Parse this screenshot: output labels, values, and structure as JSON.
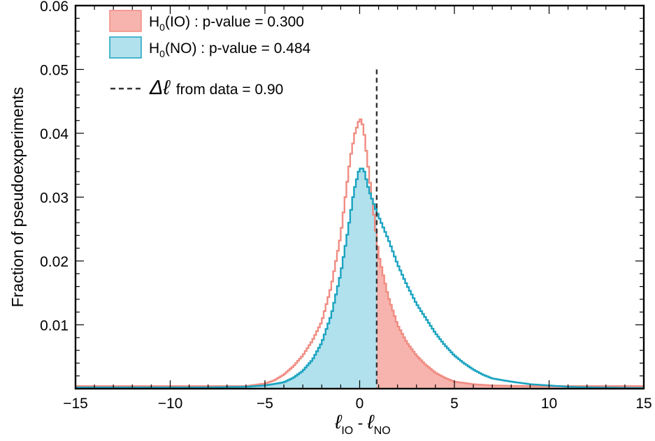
{
  "chart_data": {
    "type": "histogram",
    "ylabel": "Fraction of pseudoexperiments",
    "xlabel": {
      "base1": "ℓ",
      "sub1": "IO",
      "sep": " - ",
      "base2": "ℓ",
      "sub2": "NO"
    },
    "xlim": [
      -15,
      15
    ],
    "ylim": [
      0,
      0.06
    ],
    "xticks": [
      -15,
      -10,
      -5,
      0,
      5,
      10,
      15
    ],
    "xtick_labels": [
      "−15",
      "−10",
      "−5",
      "0",
      "5",
      "10",
      "15"
    ],
    "yticks": [
      0.01,
      0.02,
      0.03,
      0.04,
      0.05,
      0.06
    ],
    "ytick_labels": [
      "0.01",
      "0.02",
      "0.03",
      "0.04",
      "0.05",
      "0.06"
    ],
    "grid": false,
    "legend_position": "top-left",
    "data_line_x": 0.9,
    "series": [
      {
        "key": "io",
        "legend": {
          "pre": "H",
          "sub": "0",
          "post": "(IO) : p-value = 0.300"
        },
        "line_color": "#f08c82",
        "fill_color": "#f7b4ae",
        "shaded_side": "right",
        "points": [
          [
            -15,
            0.0004
          ],
          [
            -10,
            0.0004
          ],
          [
            -6,
            0.0004
          ],
          [
            -5,
            0.0008
          ],
          [
            -4.5,
            0.0013
          ],
          [
            -4,
            0.0022
          ],
          [
            -3.5,
            0.0035
          ],
          [
            -3,
            0.0052
          ],
          [
            -2.5,
            0.0075
          ],
          [
            -2,
            0.0105
          ],
          [
            -1.5,
            0.016
          ],
          [
            -1,
            0.024
          ],
          [
            -0.75,
            0.03
          ],
          [
            -0.5,
            0.036
          ],
          [
            -0.25,
            0.04
          ],
          [
            -0.05,
            0.0418
          ],
          [
            0.05,
            0.0422
          ],
          [
            0.2,
            0.041
          ],
          [
            0.4,
            0.036
          ],
          [
            0.6,
            0.031
          ],
          [
            0.8,
            0.026
          ],
          [
            1.0,
            0.021
          ],
          [
            1.5,
            0.0145
          ],
          [
            2,
            0.01
          ],
          [
            2.5,
            0.0072
          ],
          [
            3,
            0.0052
          ],
          [
            3.5,
            0.0037
          ],
          [
            4,
            0.0025
          ],
          [
            4.5,
            0.0017
          ],
          [
            5,
            0.0011
          ],
          [
            6,
            0.0007
          ],
          [
            7,
            0.0005
          ],
          [
            9,
            0.0004
          ],
          [
            15,
            0.0004
          ]
        ]
      },
      {
        "key": "no",
        "legend": {
          "pre": "H",
          "sub": "0",
          "post": "(NO) : p-value = 0.484"
        },
        "line_color": "#1aa3c0",
        "fill_color": "#b1e1ec",
        "shaded_side": "left",
        "points": [
          [
            -15,
            0.0002
          ],
          [
            -8,
            0.0002
          ],
          [
            -6,
            0.0003
          ],
          [
            -5,
            0.0005
          ],
          [
            -4,
            0.001
          ],
          [
            -3.5,
            0.0017
          ],
          [
            -3,
            0.0028
          ],
          [
            -2.5,
            0.0045
          ],
          [
            -2,
            0.0072
          ],
          [
            -1.5,
            0.0115
          ],
          [
            -1,
            0.018
          ],
          [
            -0.6,
            0.025
          ],
          [
            -0.3,
            0.031
          ],
          [
            -0.05,
            0.034
          ],
          [
            0.1,
            0.0347
          ],
          [
            0.25,
            0.034
          ],
          [
            0.5,
            0.031
          ],
          [
            0.8,
            0.0285
          ],
          [
            1.0,
            0.027
          ],
          [
            1.5,
            0.0235
          ],
          [
            2,
            0.0195
          ],
          [
            2.5,
            0.0162
          ],
          [
            3,
            0.0133
          ],
          [
            3.5,
            0.011
          ],
          [
            4,
            0.0087
          ],
          [
            4.5,
            0.0068
          ],
          [
            5,
            0.0052
          ],
          [
            5.5,
            0.004
          ],
          [
            6,
            0.003
          ],
          [
            6.5,
            0.0022
          ],
          [
            7,
            0.0016
          ],
          [
            8,
            0.0011
          ],
          [
            9,
            0.0007
          ],
          [
            10,
            0.0005
          ],
          [
            11,
            0.0003
          ],
          [
            12,
            0.0002
          ],
          [
            15,
            0.0001
          ]
        ]
      }
    ],
    "data_line_label": {
      "symbol": "Δℓ",
      "text": "from data = 0.90"
    }
  }
}
